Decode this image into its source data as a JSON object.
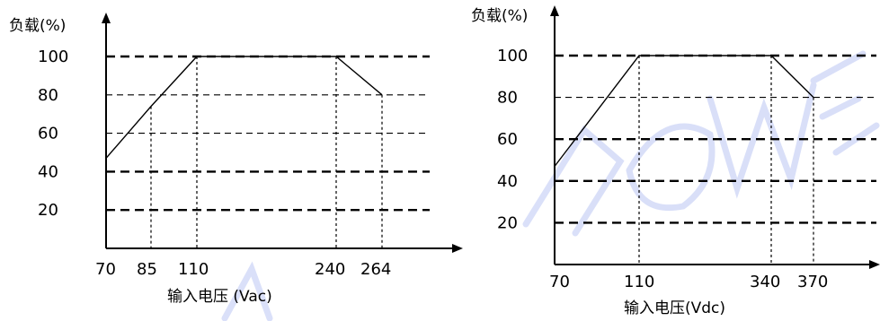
{
  "watermark": {
    "color": "#3355dd"
  },
  "chart_data": [
    {
      "type": "line",
      "title": "",
      "ylabel": "负载(%)",
      "xlabel": "输入电压 (Vac)",
      "x_ticks": [
        "70",
        "85",
        "110",
        "240",
        "264"
      ],
      "y_ticks": [
        "20",
        "40",
        "60",
        "80",
        "100"
      ],
      "x_tick_values": [
        70,
        85,
        110,
        240,
        264
      ],
      "y_tick_values": [
        20,
        40,
        60,
        80,
        100
      ],
      "ylim": [
        0,
        100
      ],
      "grid": "dashed",
      "series": [
        {
          "x": [
            70,
            85,
            110,
            240,
            264
          ],
          "values": [
            47,
            74,
            100,
            100,
            80
          ]
        }
      ]
    },
    {
      "type": "line",
      "title": "",
      "ylabel": "负载(%)",
      "xlabel": "输入电压(Vdc)",
      "x_ticks": [
        "70",
        "110",
        "340",
        "370"
      ],
      "y_ticks": [
        "20",
        "40",
        "60",
        "80",
        "100"
      ],
      "x_tick_values": [
        70,
        110,
        340,
        370
      ],
      "y_tick_values": [
        20,
        40,
        60,
        80,
        100
      ],
      "ylim": [
        0,
        100
      ],
      "grid": "dashed",
      "series": [
        {
          "x": [
            70,
            110,
            340,
            370
          ],
          "values": [
            47,
            100,
            100,
            80
          ]
        }
      ]
    }
  ]
}
